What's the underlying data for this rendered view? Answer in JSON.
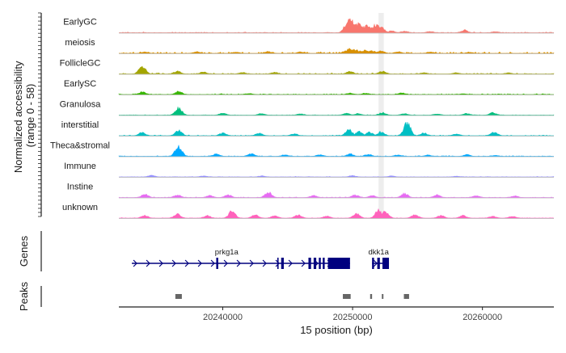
{
  "chart_data": {
    "type": "area",
    "ylabel": "Normalized accessibility\n(range 0 - 58)",
    "xlabel": "15 position (bp)",
    "xlim": [
      20232000,
      20265500
    ],
    "x_ticks": [
      20240000,
      20250000,
      20260000
    ],
    "x_tick_labels": [
      "20240000",
      "20250000",
      "20260000"
    ],
    "highlight_region": [
      20252000,
      20252400
    ],
    "gene_track_label": "Genes",
    "peak_track_label": "Peaks",
    "series": [
      {
        "name": "EarlyGC",
        "color": "#F8766D",
        "peaks": [
          [
            20249600,
            0.75
          ],
          [
            20249800,
            0.95
          ],
          [
            20250000,
            0.85
          ],
          [
            20250200,
            0.6
          ],
          [
            20250500,
            0.7
          ],
          [
            20250800,
            0.5
          ],
          [
            20251100,
            0.55
          ],
          [
            20251400,
            0.45
          ],
          [
            20251800,
            0.6
          ],
          [
            20252200,
            0.4
          ],
          [
            20253000,
            0.15
          ],
          [
            20254000,
            0.12
          ],
          [
            20256000,
            0.1
          ],
          [
            20258600,
            0.2
          ],
          [
            20261000,
            0.08
          ]
        ],
        "base": 0.05
      },
      {
        "name": "meiosis",
        "color": "#D89000",
        "peaks": [
          [
            20249500,
            0.2
          ],
          [
            20249800,
            0.35
          ],
          [
            20250200,
            0.3
          ],
          [
            20250600,
            0.2
          ],
          [
            20251000,
            0.25
          ],
          [
            20251500,
            0.2
          ],
          [
            20252200,
            0.18
          ],
          [
            20253500,
            0.12
          ],
          [
            20234000,
            0.1
          ],
          [
            20238000,
            0.12
          ],
          [
            20241000,
            0.1
          ],
          [
            20243500,
            0.14
          ],
          [
            20246000,
            0.1
          ],
          [
            20256000,
            0.1
          ],
          [
            20259000,
            0.08
          ]
        ],
        "base": 0.1
      },
      {
        "name": "FollicleGC",
        "color": "#A3A500",
        "peaks": [
          [
            20233800,
            0.55
          ],
          [
            20236500,
            0.2
          ],
          [
            20238500,
            0.15
          ],
          [
            20241500,
            0.12
          ],
          [
            20244000,
            0.12
          ],
          [
            20249800,
            0.18
          ],
          [
            20252300,
            0.22
          ],
          [
            20255500,
            0.1
          ],
          [
            20258000,
            0.1
          ],
          [
            20262000,
            0.08
          ]
        ],
        "base": 0.06
      },
      {
        "name": "EarlySC",
        "color": "#39B600",
        "peaks": [
          [
            20233800,
            0.2
          ],
          [
            20236600,
            0.22
          ],
          [
            20242000,
            0.08
          ],
          [
            20249800,
            0.12
          ],
          [
            20251000,
            0.1
          ],
          [
            20253800,
            0.12
          ],
          [
            20258500,
            0.06
          ]
        ],
        "base": 0.06
      },
      {
        "name": "Granulosa",
        "color": "#00BF7D",
        "peaks": [
          [
            20236600,
            0.55
          ],
          [
            20240000,
            0.15
          ],
          [
            20243000,
            0.12
          ],
          [
            20246000,
            0.1
          ],
          [
            20249500,
            0.15
          ],
          [
            20250400,
            0.12
          ],
          [
            20252300,
            0.2
          ],
          [
            20254000,
            0.12
          ],
          [
            20256500,
            0.1
          ],
          [
            20258800,
            0.12
          ],
          [
            20260800,
            0.18
          ]
        ],
        "base": 0.03
      },
      {
        "name": "interstitial",
        "color": "#00BFC4",
        "peaks": [
          [
            20233800,
            0.25
          ],
          [
            20236600,
            0.4
          ],
          [
            20240000,
            0.2
          ],
          [
            20242800,
            0.2
          ],
          [
            20245500,
            0.15
          ],
          [
            20249700,
            0.45
          ],
          [
            20250500,
            0.3
          ],
          [
            20251300,
            0.25
          ],
          [
            20252200,
            0.3
          ],
          [
            20254200,
            0.95
          ],
          [
            20255500,
            0.2
          ],
          [
            20258000,
            0.15
          ],
          [
            20260900,
            0.25
          ]
        ],
        "base": 0.05
      },
      {
        "name": "Theca&stromal",
        "color": "#00A9FF",
        "peaks": [
          [
            20236600,
            0.75
          ],
          [
            20239500,
            0.18
          ],
          [
            20242200,
            0.2
          ],
          [
            20244800,
            0.12
          ],
          [
            20247500,
            0.12
          ],
          [
            20249800,
            0.18
          ],
          [
            20251200,
            0.15
          ],
          [
            20253500,
            0.12
          ],
          [
            20255800,
            0.1
          ],
          [
            20258800,
            0.12
          ],
          [
            20261000,
            0.08
          ]
        ],
        "base": 0.05
      },
      {
        "name": "Immune",
        "color": "#9590FF",
        "peaks": [
          [
            20234500,
            0.12
          ],
          [
            20238500,
            0.08
          ],
          [
            20243000,
            0.08
          ],
          [
            20250000,
            0.1
          ],
          [
            20253000,
            0.08
          ],
          [
            20258000,
            0.06
          ]
        ],
        "base": 0.03
      },
      {
        "name": "Instine",
        "color": "#E76BF3",
        "peaks": [
          [
            20234000,
            0.25
          ],
          [
            20236500,
            0.2
          ],
          [
            20239000,
            0.15
          ],
          [
            20240400,
            0.2
          ],
          [
            20243500,
            0.4
          ],
          [
            20247000,
            0.15
          ],
          [
            20250200,
            0.2
          ],
          [
            20251500,
            0.15
          ],
          [
            20254000,
            0.3
          ],
          [
            20256500,
            0.2
          ],
          [
            20259500,
            0.15
          ],
          [
            20262500,
            0.12
          ]
        ],
        "base": 0.04
      },
      {
        "name": "unknown",
        "color": "#FF62BC",
        "peaks": [
          [
            20234000,
            0.2
          ],
          [
            20236500,
            0.3
          ],
          [
            20238800,
            0.2
          ],
          [
            20240700,
            0.5
          ],
          [
            20242500,
            0.25
          ],
          [
            20244000,
            0.2
          ],
          [
            20245800,
            0.25
          ],
          [
            20248000,
            0.15
          ],
          [
            20250300,
            0.35
          ],
          [
            20252000,
            0.6
          ],
          [
            20252500,
            0.5
          ],
          [
            20254800,
            0.25
          ],
          [
            20256800,
            0.2
          ],
          [
            20258500,
            0.2
          ],
          [
            20260800,
            0.15
          ],
          [
            20262300,
            0.15
          ]
        ],
        "base": 0.03
      }
    ],
    "genes": [
      {
        "name": "prkg1a",
        "start": 20233000,
        "end": 20249800,
        "label_x": 20240300,
        "exons": [
          [
            20239500,
            20239650
          ],
          [
            20244200,
            20244300
          ],
          [
            20244500,
            20244700
          ],
          [
            20246600,
            20246800
          ],
          [
            20247000,
            20247200
          ],
          [
            20247400,
            20247550
          ],
          [
            20247700,
            20247850
          ],
          [
            20248100,
            20249800
          ]
        ]
      },
      {
        "name": "dkk1a",
        "start": 20251500,
        "end": 20252800,
        "label_x": 20252000,
        "exons": [
          [
            20251500,
            20251650
          ],
          [
            20251900,
            20252100
          ],
          [
            20252300,
            20252800
          ]
        ]
      }
    ],
    "peaks": [
      [
        20236350,
        20236850
      ],
      [
        20249250,
        20249850
      ],
      [
        20251350,
        20251500
      ],
      [
        20252250,
        20252350
      ],
      [
        20253950,
        20254350
      ]
    ]
  }
}
